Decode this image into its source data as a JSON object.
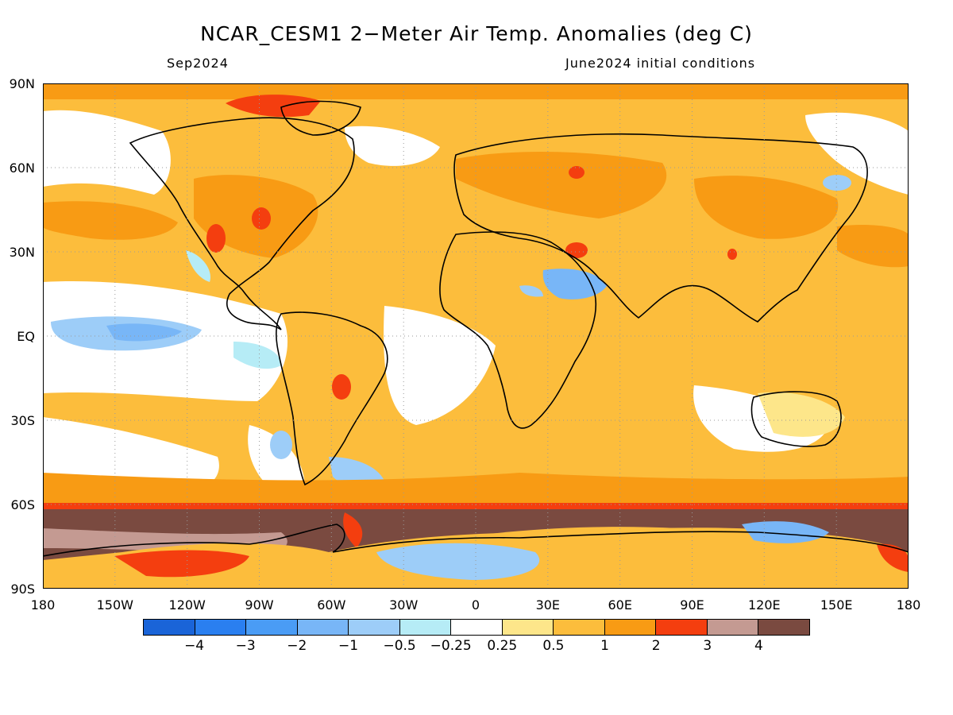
{
  "title": "NCAR_CESM1 2−Meter Air Temp. Anomalies (deg C)",
  "subtitle_left": "Sep2024",
  "subtitle_right": "June2024 initial conditions",
  "y_axis": {
    "labels": [
      "90N",
      "60N",
      "30N",
      "EQ",
      "30S",
      "60S",
      "90S"
    ],
    "values": [
      90,
      60,
      30,
      0,
      -30,
      -60,
      -90
    ]
  },
  "x_axis": {
    "labels": [
      "180",
      "150W",
      "120W",
      "90W",
      "60W",
      "30W",
      "0",
      "30E",
      "60E",
      "90E",
      "120E",
      "150E",
      "180"
    ],
    "values": [
      -180,
      -150,
      -120,
      -90,
      -60,
      -30,
      0,
      30,
      60,
      90,
      120,
      150,
      180
    ]
  },
  "colorbar": {
    "colors": [
      "#1a64d8",
      "#2a7ff0",
      "#4a9cf5",
      "#78b6f7",
      "#9dcdf8",
      "#b6ecf6",
      "#ffffff",
      "#fde68a",
      "#fcbd3c",
      "#f89b14",
      "#f43e0f",
      "#c49a92",
      "#7a4a40"
    ],
    "labels": [
      "−4",
      "−3",
      "−2",
      "−1",
      "−0.5",
      "−0.25",
      "0.25",
      "0.5",
      "1",
      "2",
      "3",
      "4"
    ]
  },
  "colors": {
    "ocean_base": "#fcbd3c",
    "land_base": "#fcbd3c",
    "grid": "#9a9a9a",
    "coast": "#000000"
  }
}
